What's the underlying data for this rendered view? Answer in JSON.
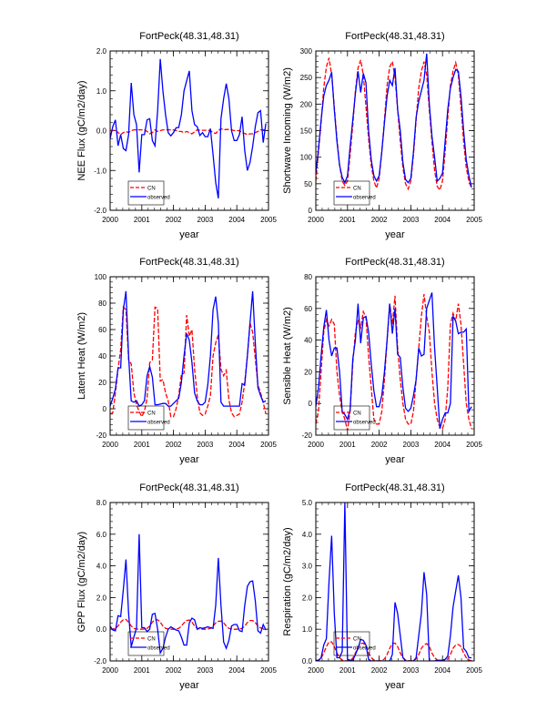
{
  "chart_data": [
    {
      "type": "line",
      "title": "FortPeck(48.31,48.31)",
      "xlabel": "year",
      "ylabel": "NEE Flux (gC/m2/day)",
      "xlim": [
        2000,
        2005
      ],
      "xticks": [
        "2000",
        "2001",
        "2002",
        "2003",
        "2004",
        "2005"
      ],
      "ylim": [
        -2,
        2
      ],
      "yticks": [
        -2,
        -1,
        0,
        1,
        2
      ],
      "ytick_labels": [
        "-2.0",
        "-1.0",
        "0.0",
        "1.0",
        "2.0"
      ],
      "time_step": "monthly",
      "legend_placement": "bottom-left",
      "series": [
        {
          "name": "CN",
          "color": "#ff0000",
          "style": "dashed",
          "values": [
            0,
            0,
            0.02,
            -0.05,
            -0.1,
            -0.05,
            -0.02,
            -0.05,
            0,
            0.02,
            0.02,
            0.02,
            0.02,
            0.02,
            -0.02,
            -0.08,
            -0.05,
            0.02,
            -0.02,
            0,
            0.02,
            0.02,
            0.02,
            0.02,
            0.02,
            0,
            -0.02,
            -0.02,
            -0.05,
            -0.02,
            -0.05,
            -0.08,
            -0.03,
            0.02,
            0.01,
            0.01,
            0.01,
            0.01,
            0,
            -0.05,
            -0.07,
            0,
            0.05,
            0.02,
            0.03,
            0.03,
            0.02,
            0,
            0,
            0,
            -0.05,
            -0.07,
            -0.1,
            -0.08,
            -0.08,
            -0.05,
            -0.02,
            0.02,
            0.02,
            0.02
          ]
        },
        {
          "name": "observed",
          "color": "#0000ff",
          "style": "solid",
          "values": [
            -0.2,
            0.1,
            0.27,
            -0.38,
            -0.1,
            -0.45,
            -0.5,
            -0.1,
            1.2,
            0.4,
            0.15,
            -1.05,
            -0.1,
            -0.1,
            0.27,
            0.3,
            -0.25,
            -0.38,
            0.5,
            1.8,
            1.0,
            0.4,
            -0.05,
            -0.13,
            -0.05,
            0.07,
            0.08,
            0.4,
            1.0,
            1.25,
            1.5,
            0.5,
            0.15,
            0.1,
            -0.12,
            -0.05,
            -0.15,
            -0.15,
            0.05,
            -0.6,
            -1.3,
            -1.7,
            0.3,
            0.8,
            1.18,
            0.8,
            0,
            -0.25,
            -0.25,
            -0.1,
            0.35,
            -0.5,
            -1.0,
            -0.8,
            -0.4,
            0.1,
            0.45,
            0.5,
            -0.3,
            0.18
          ]
        }
      ]
    },
    {
      "type": "line",
      "title": "FortPeck(48.31,48.31)",
      "xlabel": "year",
      "ylabel": "Shortwave Incoming (W/m2)",
      "xlim": [
        2000,
        2005
      ],
      "xticks": [
        "2000",
        "2001",
        "2002",
        "2003",
        "2004",
        "2005"
      ],
      "ylim": [
        0,
        300
      ],
      "yticks": [
        0,
        50,
        100,
        150,
        200,
        250,
        300
      ],
      "ytick_labels": [
        "0",
        "50",
        "100",
        "150",
        "200",
        "250",
        "300"
      ],
      "time_step": "monthly",
      "legend_placement": "bottom-left",
      "series": [
        {
          "name": "CN",
          "color": "#ff0000",
          "style": "dashed",
          "values": [
            55,
            110,
            165,
            230,
            270,
            287,
            255,
            195,
            135,
            85,
            55,
            47,
            55,
            105,
            160,
            225,
            268,
            283,
            255,
            195,
            135,
            85,
            55,
            42,
            60,
            110,
            170,
            235,
            270,
            280,
            250,
            190,
            130,
            80,
            50,
            40,
            55,
            105,
            170,
            230,
            262,
            280,
            255,
            190,
            130,
            75,
            45,
            38,
            55,
            110,
            175,
            235,
            262,
            278,
            255,
            195,
            130,
            80,
            55,
            42
          ]
        },
        {
          "name": "observed",
          "color": "#0000ff",
          "style": "solid",
          "values": [
            70,
            115,
            170,
            215,
            235,
            245,
            260,
            190,
            130,
            85,
            62,
            52,
            65,
            120,
            170,
            220,
            262,
            222,
            258,
            240,
            150,
            95,
            65,
            55,
            65,
            110,
            165,
            215,
            245,
            235,
            268,
            190,
            150,
            90,
            58,
            52,
            60,
            110,
            175,
            205,
            225,
            245,
            295,
            200,
            140,
            100,
            55,
            60,
            70,
            130,
            190,
            230,
            250,
            265,
            262,
            215,
            150,
            95,
            65,
            43
          ]
        }
      ]
    },
    {
      "type": "line",
      "title": "FortPeck(48.31,48.31)",
      "xlabel": "year",
      "ylabel": "Latent Heat (W/m2)",
      "xlim": [
        2000,
        2005
      ],
      "xticks": [
        "2000",
        "2001",
        "2002",
        "2003",
        "2004",
        "2005"
      ],
      "ylim": [
        -20,
        100
      ],
      "yticks": [
        -20,
        0,
        20,
        40,
        60,
        80,
        100
      ],
      "ytick_labels": [
        "-20",
        "0",
        "20",
        "40",
        "60",
        "80",
        "100"
      ],
      "time_step": "monthly",
      "legend_placement": "bottom-left",
      "series": [
        {
          "name": "CN",
          "color": "#ff0000",
          "style": "dashed",
          "values": [
            -4,
            -3,
            12,
            30,
            45,
            77,
            75,
            37,
            34,
            12,
            3,
            -2,
            -6,
            -2,
            8,
            35,
            37,
            77,
            76,
            21,
            22,
            12,
            6,
            -6,
            -6,
            0,
            10,
            26,
            27,
            71,
            55,
            60,
            30,
            10,
            -3,
            -5,
            -4,
            2,
            10,
            40,
            50,
            56,
            30,
            25,
            29,
            7,
            -3,
            -6,
            -5,
            -4,
            5,
            20,
            40,
            65,
            58,
            38,
            18,
            12,
            5,
            -4
          ]
        },
        {
          "name": "observed",
          "color": "#0000ff",
          "style": "solid",
          "values": [
            2,
            8,
            15,
            31,
            31,
            75,
            89,
            40,
            6,
            5,
            6,
            2,
            3,
            6,
            25,
            32,
            24,
            3,
            3,
            3.5,
            4,
            4,
            2,
            2,
            4,
            6,
            8,
            20,
            40,
            57,
            52,
            35,
            12,
            6,
            3,
            3,
            5,
            18,
            40,
            75,
            85,
            65,
            5,
            2,
            2,
            2,
            2,
            2,
            2,
            2,
            19,
            18,
            40,
            65,
            89,
            50,
            16,
            10,
            5,
            6
          ]
        }
      ]
    },
    {
      "type": "line",
      "title": "FortPeck(48.31,48.31)",
      "xlabel": "year",
      "ylabel": "Sensible Heat (W/m2)",
      "xlim": [
        2000,
        2005
      ],
      "xticks": [
        "2000",
        "2001",
        "2002",
        "2003",
        "2004",
        "2005"
      ],
      "ylim": [
        -20,
        80
      ],
      "yticks": [
        -20,
        0,
        20,
        40,
        60,
        80
      ],
      "ytick_labels": [
        "-20",
        "0",
        "20",
        "40",
        "60",
        "80"
      ],
      "time_step": "monthly",
      "legend_placement": "bottom-left",
      "series": [
        {
          "name": "CN",
          "color": "#ff0000",
          "style": "dashed",
          "values": [
            -13,
            -5,
            20,
            45,
            53,
            49,
            53,
            50,
            20,
            5,
            -5,
            -10,
            -17,
            -5,
            25,
            45,
            52,
            48,
            58,
            54,
            30,
            10,
            -10,
            -13,
            -13,
            -5,
            15,
            40,
            63,
            50,
            68,
            35,
            15,
            0,
            -10,
            -13,
            -13,
            -5,
            15,
            35,
            55,
            69,
            55,
            45,
            20,
            0,
            -10,
            -15,
            -16,
            -10,
            10,
            50,
            57,
            52,
            63,
            50,
            25,
            0,
            -10,
            -16
          ]
        },
        {
          "name": "observed",
          "color": "#0000ff",
          "style": "solid",
          "values": [
            -2,
            10,
            30,
            48,
            59,
            40,
            30,
            35,
            35,
            20,
            -5,
            -7,
            -10,
            -4,
            28,
            40,
            63,
            38,
            54,
            55,
            45,
            25,
            8,
            -2,
            -2,
            5,
            20,
            40,
            63,
            44,
            60,
            31,
            29,
            10,
            -3,
            -5,
            -3,
            5,
            15,
            35,
            30,
            31,
            60,
            65,
            70,
            35,
            10,
            -16,
            -10,
            -6,
            -6,
            0,
            55,
            52,
            44,
            45,
            45,
            47,
            -5,
            -2
          ]
        }
      ]
    },
    {
      "type": "line",
      "title": "FortPeck(48.31,48.31)",
      "xlabel": "year",
      "ylabel": "GPP Flux (gC/m2/day)",
      "xlim": [
        2000,
        2005
      ],
      "xticks": [
        "2000",
        "2001",
        "2002",
        "2003",
        "2004",
        "2005"
      ],
      "ylim": [
        -2,
        8
      ],
      "yticks": [
        -2,
        0,
        2,
        4,
        6,
        8
      ],
      "ytick_labels": [
        "-2.0",
        "0.0",
        "2.0",
        "4.0",
        "6.0",
        "8.0"
      ],
      "time_step": "monthly",
      "legend_placement": "bottom-left",
      "series": [
        {
          "name": "CN",
          "color": "#ff0000",
          "style": "dashed",
          "values": [
            0,
            0.02,
            0.05,
            0.2,
            0.45,
            0.6,
            0.62,
            0.45,
            0.2,
            0.05,
            0.02,
            0,
            0,
            0.02,
            0.05,
            0.2,
            0.45,
            0.6,
            0.6,
            0.45,
            0.2,
            0.05,
            0.02,
            0,
            0,
            0.02,
            0.05,
            0.2,
            0.4,
            0.55,
            0.58,
            0.45,
            0.2,
            0.05,
            0.02,
            0,
            0,
            0.02,
            0.05,
            0.2,
            0.4,
            0.5,
            0.52,
            0.4,
            0.2,
            0.05,
            0.02,
            0,
            0,
            0.02,
            0.05,
            0.2,
            0.42,
            0.55,
            0.55,
            0.42,
            0.2,
            0.08,
            0.05,
            0
          ]
        },
        {
          "name": "observed",
          "color": "#0000ff",
          "style": "solid",
          "values": [
            0.2,
            -0.05,
            -0.1,
            0.85,
            0.8,
            2.5,
            4.4,
            1,
            -1.1,
            -0.5,
            0.1,
            6.0,
            0.1,
            0.1,
            -0.15,
            0,
            0.95,
            1.0,
            0,
            -1.5,
            -1.2,
            -0.5,
            0,
            0.15,
            0.05,
            -0.05,
            -0.1,
            -0.5,
            -1.0,
            -1.0,
            0.4,
            0.7,
            0.6,
            0,
            0.1,
            0.05,
            0.1,
            0.15,
            0.1,
            0.05,
            1.5,
            4.5,
            1.5,
            -0.8,
            -1.2,
            -0.7,
            0.2,
            0.3,
            0.3,
            -0.1,
            -0.15,
            1.5,
            2.7,
            3.0,
            3.05,
            1.8,
            -0.1,
            -0.25,
            0.3,
            -0.05
          ]
        }
      ]
    },
    {
      "type": "line",
      "title": "FortPeck(48.31,48.31)",
      "xlabel": "year",
      "ylabel": "Respiration (gC/m2/day)",
      "xlim": [
        2000,
        2005
      ],
      "xticks": [
        "2000",
        "2001",
        "2002",
        "2003",
        "2004",
        "2005"
      ],
      "ylim": [
        0,
        5
      ],
      "yticks": [
        0,
        1,
        2,
        3,
        4,
        5
      ],
      "ytick_labels": [
        "0.0",
        "1.0",
        "2.0",
        "3.0",
        "4.0",
        "5.0"
      ],
      "time_step": "monthly",
      "legend_placement": "bottom-left",
      "series": [
        {
          "name": "CN",
          "color": "#ff0000",
          "style": "dashed",
          "values": [
            0,
            0.02,
            0.08,
            0.25,
            0.45,
            0.6,
            0.6,
            0.45,
            0.25,
            0.1,
            0.03,
            0.01,
            0,
            0.02,
            0.08,
            0.25,
            0.42,
            0.55,
            0.56,
            0.45,
            0.25,
            0.1,
            0.03,
            0.01,
            0,
            0.02,
            0.06,
            0.2,
            0.4,
            0.55,
            0.56,
            0.45,
            0.25,
            0.1,
            0.03,
            0.01,
            0,
            0.02,
            0.06,
            0.2,
            0.4,
            0.5,
            0.55,
            0.45,
            0.25,
            0.1,
            0.03,
            0.01,
            0,
            0.02,
            0.06,
            0.2,
            0.4,
            0.5,
            0.52,
            0.45,
            0.25,
            0.1,
            0.03,
            0.01
          ]
        },
        {
          "name": "observed",
          "color": "#0000ff",
          "style": "solid",
          "values": [
            0.02,
            0.02,
            0.1,
            0.5,
            0.7,
            2.5,
            3.95,
            1.5,
            0.1,
            0.1,
            0.3,
            5.0,
            0.05,
            0.02,
            0.02,
            0.2,
            0.4,
            0.68,
            0.65,
            0.5,
            0.05,
            0,
            0,
            0,
            0,
            0,
            0,
            0,
            0,
            0.2,
            1.85,
            1.5,
            0.8,
            0.1,
            0,
            0,
            0,
            0,
            0.1,
            0.8,
            1.5,
            2.8,
            2.1,
            0,
            0,
            0,
            0.02,
            0.02,
            0.02,
            0.05,
            0.15,
            0.8,
            1.7,
            2.2,
            2.7,
            2.0,
            0.4,
            0.3,
            0.1,
            0.1
          ]
        }
      ]
    }
  ]
}
